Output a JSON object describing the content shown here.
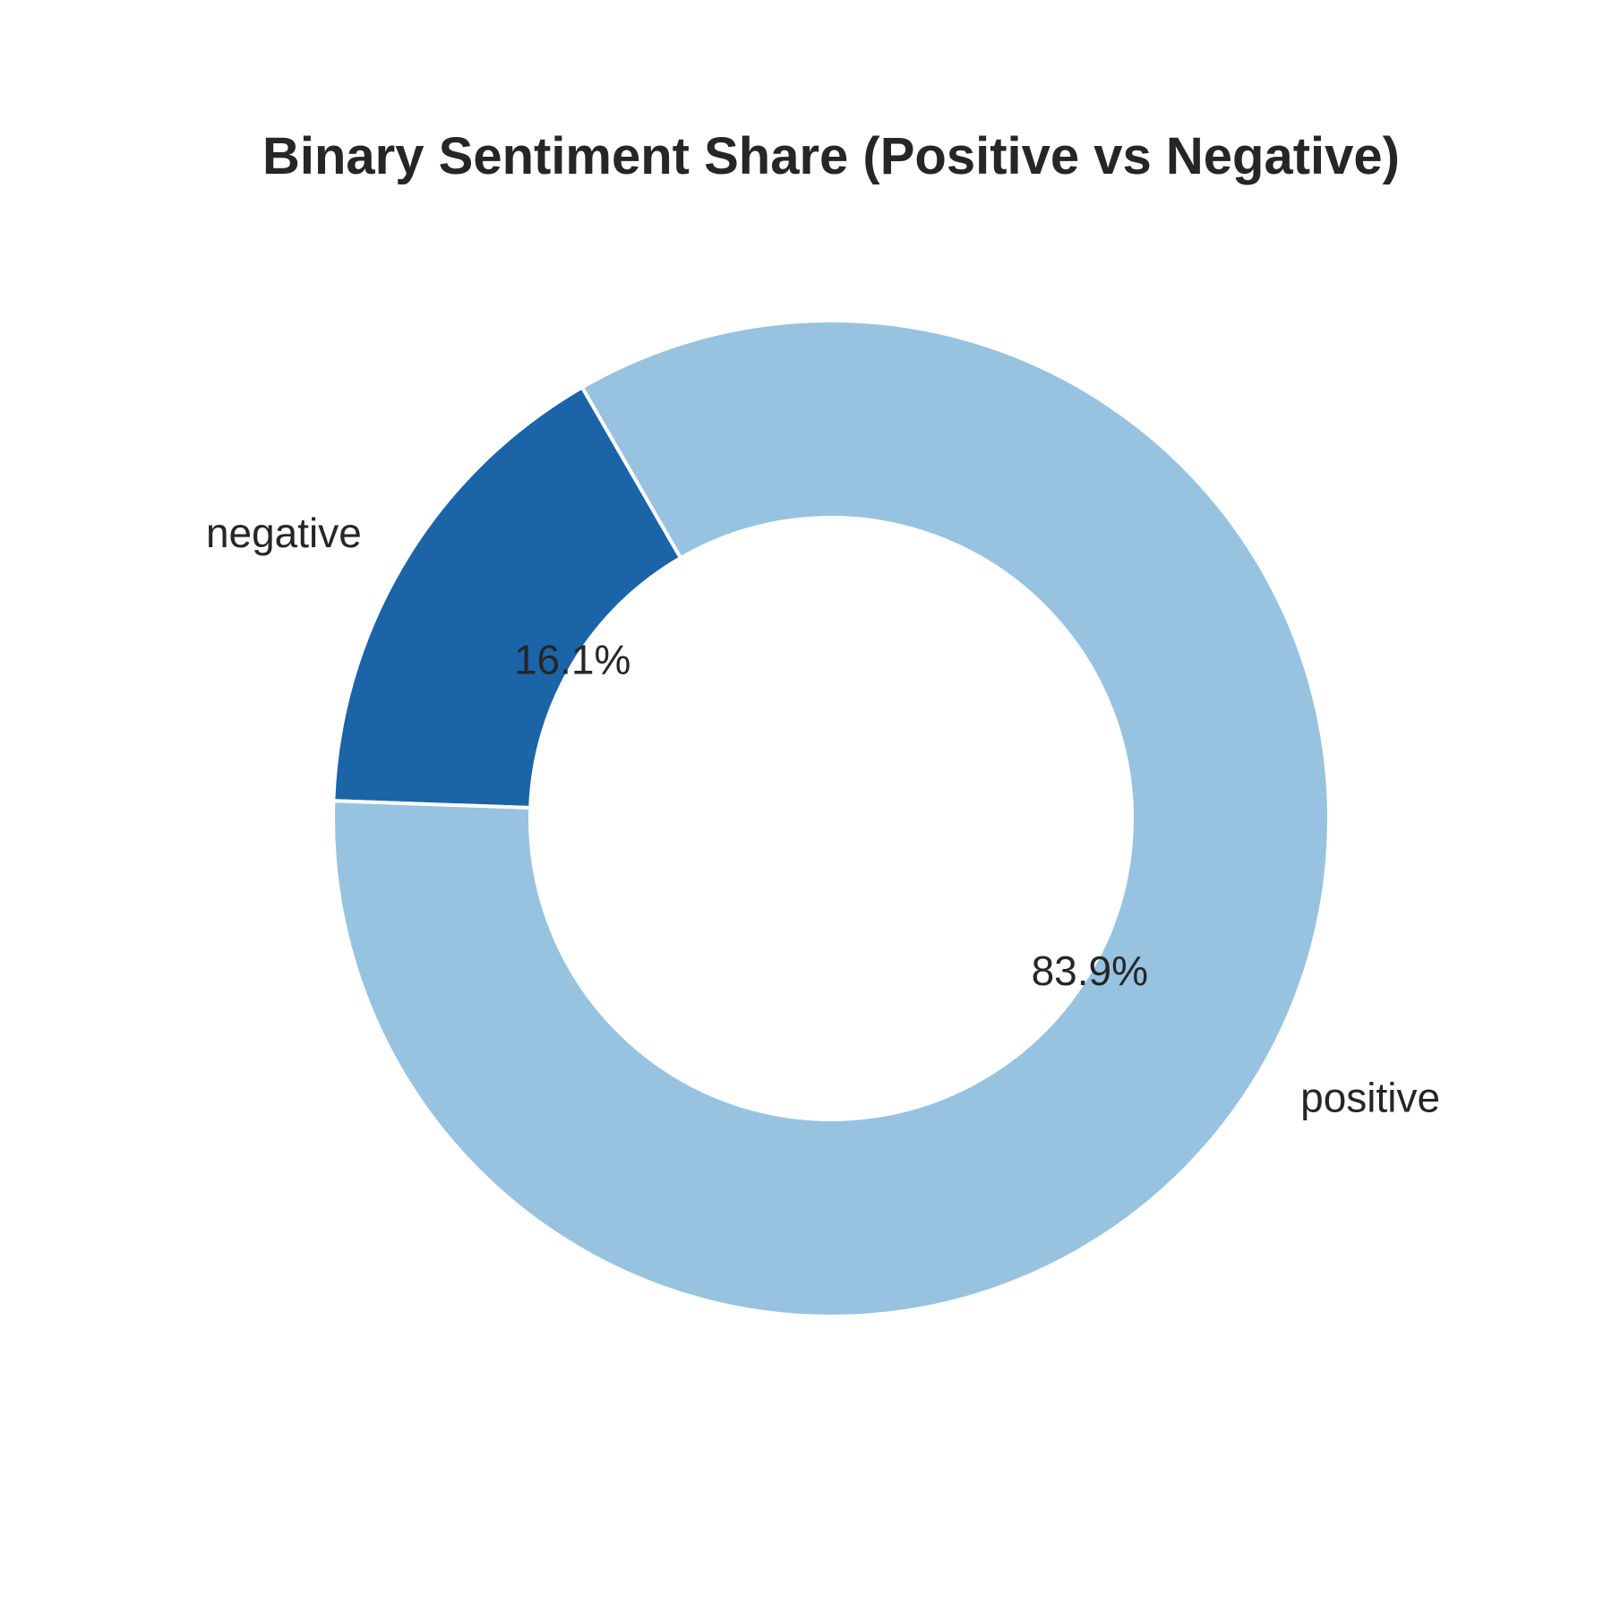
{
  "chart_data": {
    "type": "pie",
    "variant": "donut",
    "title": "Binary Sentiment Share (Positive vs Negative)",
    "slices": [
      {
        "label": "negative",
        "value": 16.1,
        "pct_label": "16.1%",
        "color": "#1b64a8"
      },
      {
        "label": "positive",
        "value": 83.9,
        "pct_label": "83.9%",
        "color": "#97c3e0"
      }
    ],
    "slice_edge_color": "#ffffff",
    "background": "#ffffff"
  }
}
